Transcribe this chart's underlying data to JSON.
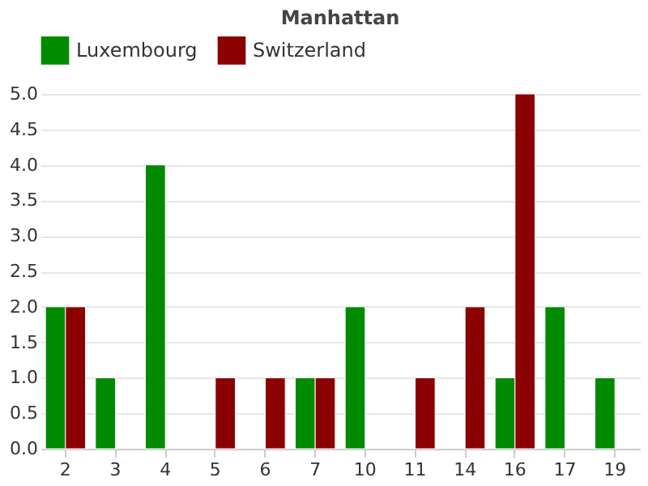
{
  "chart_data": {
    "type": "bar",
    "title": "Manhattan",
    "categories": [
      "2",
      "3",
      "4",
      "5",
      "6",
      "7",
      "10",
      "11",
      "14",
      "16",
      "17",
      "19"
    ],
    "series": [
      {
        "name": "Luxembourg",
        "color": "#008a00",
        "values": [
          2,
          1,
          4,
          null,
          null,
          1,
          2,
          null,
          null,
          1,
          2,
          1
        ]
      },
      {
        "name": "Switzerland",
        "color": "#8b0000",
        "values": [
          2,
          null,
          null,
          1,
          1,
          1,
          null,
          1,
          2,
          5,
          null,
          null
        ]
      }
    ],
    "ylim": [
      0,
      5
    ],
    "yticks": [
      {
        "value": 0,
        "label": "0.0"
      },
      0.5,
      {
        "value": 1,
        "label": "1.0"
      },
      1.5,
      {
        "value": 2,
        "label": "2.0"
      },
      2.5,
      {
        "value": 3,
        "label": "3.0"
      },
      3.5,
      {
        "value": 4,
        "label": "4.0"
      },
      4.5,
      {
        "value": 5,
        "label": "5.0"
      }
    ],
    "grid": "y",
    "legend": "top"
  }
}
